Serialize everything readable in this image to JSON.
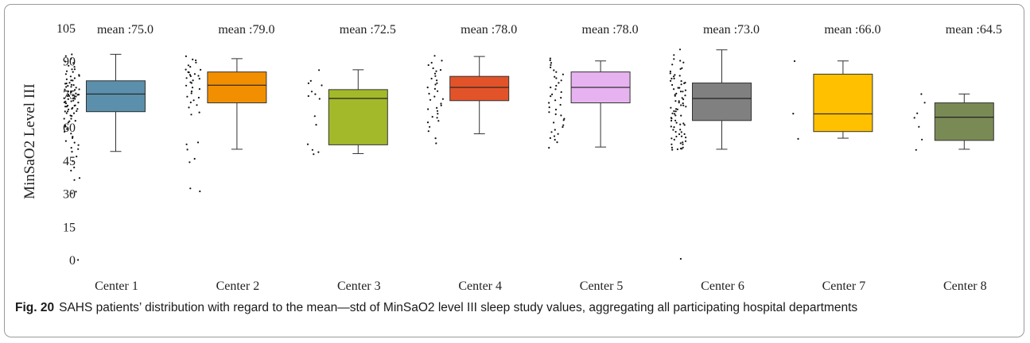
{
  "chart_data": {
    "type": "box",
    "ylabel": "MinSaO2 Level III",
    "ylim": [
      0,
      105
    ],
    "yticks": [
      0,
      15,
      30,
      45,
      60,
      75,
      90,
      105
    ],
    "grid": false,
    "categories": [
      "Center 1",
      "Center 2",
      "Center 3",
      "Center 4",
      "Center 5",
      "Center 6",
      "Center 7",
      "Center 8"
    ],
    "series": [
      {
        "category": "Center 1",
        "mean_label": "mean :75.0",
        "color": "#5b8fab",
        "min": 49,
        "q1": 67,
        "median": 75,
        "q3": 81,
        "max": 93,
        "points": [
          93,
          92,
          91,
          90,
          89,
          88,
          87,
          86,
          86,
          85,
          85,
          84,
          84,
          83,
          83,
          82,
          82,
          81,
          81,
          80,
          80,
          80,
          79,
          79,
          79,
          78,
          78,
          78,
          77,
          77,
          77,
          76,
          76,
          76,
          76,
          75,
          75,
          75,
          75,
          74,
          74,
          74,
          74,
          73,
          73,
          73,
          73,
          72,
          72,
          72,
          71,
          71,
          71,
          70,
          70,
          70,
          69,
          69,
          69,
          68,
          68,
          68,
          67,
          67,
          67,
          66,
          66,
          65,
          65,
          64,
          64,
          63,
          63,
          62,
          61,
          60,
          59,
          58,
          57,
          56,
          55,
          54,
          53,
          52,
          51,
          50,
          49,
          47,
          45,
          42,
          40,
          37,
          36,
          31,
          30,
          0
        ]
      },
      {
        "category": "Center 2",
        "mean_label": "mean :79.0",
        "color": "#f28f00",
        "min": 50,
        "q1": 71,
        "median": 79,
        "q3": 85,
        "max": 91,
        "points": [
          92,
          91,
          90,
          89,
          88,
          87,
          86,
          86,
          85,
          85,
          84,
          84,
          83,
          83,
          82,
          82,
          81,
          80,
          80,
          79,
          78,
          77,
          76,
          75,
          74,
          73,
          72,
          71,
          70,
          69,
          67,
          66,
          53,
          52,
          50,
          46,
          44,
          32,
          31
        ]
      },
      {
        "category": "Center 3",
        "mean_label": "mean :72.5",
        "color": "#a4b92a",
        "min": 48,
        "q1": 52,
        "median": 73,
        "q3": 77,
        "max": 86,
        "points": [
          86,
          81,
          80,
          79,
          76,
          75,
          74,
          73,
          65,
          61,
          52,
          50,
          49,
          48
        ]
      },
      {
        "category": "Center 4",
        "mean_label": "mean :78.0",
        "color": "#e2532a",
        "min": 57,
        "q1": 72,
        "median": 78,
        "q3": 83,
        "max": 92,
        "points": [
          92,
          90,
          89,
          88,
          87,
          86,
          85,
          84,
          83,
          82,
          81,
          80,
          79,
          78,
          77,
          76,
          75,
          74,
          73,
          72,
          71,
          70,
          69,
          68,
          67,
          66,
          65,
          64,
          63,
          62,
          60,
          58,
          55,
          53
        ]
      },
      {
        "category": "Center 5",
        "mean_label": "mean :78.0",
        "color": "#e6b3f0",
        "min": 51,
        "q1": 71,
        "median": 78,
        "q3": 85,
        "max": 90,
        "points": [
          91,
          90,
          89,
          88,
          87,
          86,
          85,
          84,
          83,
          82,
          81,
          80,
          79,
          78,
          77,
          76,
          75,
          74,
          73,
          72,
          71,
          70,
          69,
          68,
          67,
          66,
          65,
          64,
          63,
          62,
          61,
          60,
          59,
          58,
          57,
          56,
          55,
          54,
          53,
          51
        ]
      },
      {
        "category": "Center 6",
        "mean_label": "mean :73.0",
        "color": "#808080",
        "min": 50,
        "q1": 63,
        "median": 73,
        "q3": 80,
        "max": 95,
        "points": [
          95,
          93,
          91,
          90,
          89,
          88,
          87,
          86,
          85,
          84,
          84,
          83,
          83,
          82,
          82,
          81,
          81,
          80,
          80,
          79,
          79,
          78,
          78,
          77,
          77,
          76,
          76,
          75,
          75,
          74,
          74,
          73,
          73,
          72,
          72,
          71,
          71,
          70,
          70,
          69,
          69,
          68,
          68,
          67,
          67,
          66,
          66,
          65,
          65,
          64,
          64,
          63,
          63,
          62,
          62,
          61,
          61,
          60,
          60,
          59,
          59,
          58,
          58,
          57,
          57,
          56,
          56,
          55,
          55,
          54,
          54,
          53,
          53,
          52,
          52,
          51,
          51,
          50,
          50,
          50,
          50,
          0
        ]
      },
      {
        "category": "Center 7",
        "mean_label": "mean :66.0",
        "color": "#ffc000",
        "min": 55,
        "q1": 58,
        "median": 66,
        "q3": 84,
        "max": 90,
        "points": [
          90,
          66,
          55
        ]
      },
      {
        "category": "Center 8",
        "mean_label": "mean :64.5",
        "color": "#7a8a55",
        "min": 50,
        "q1": 54,
        "median": 64.5,
        "q3": 71,
        "max": 75,
        "points": [
          75,
          71,
          66,
          64,
          60,
          54,
          50
        ]
      }
    ]
  },
  "caption": {
    "label": "Fig. 20",
    "text": "SAHS patients’ distribution with regard to the mean—std of MinSaO2 level III sleep study values, aggregating all participating hospital departments"
  }
}
